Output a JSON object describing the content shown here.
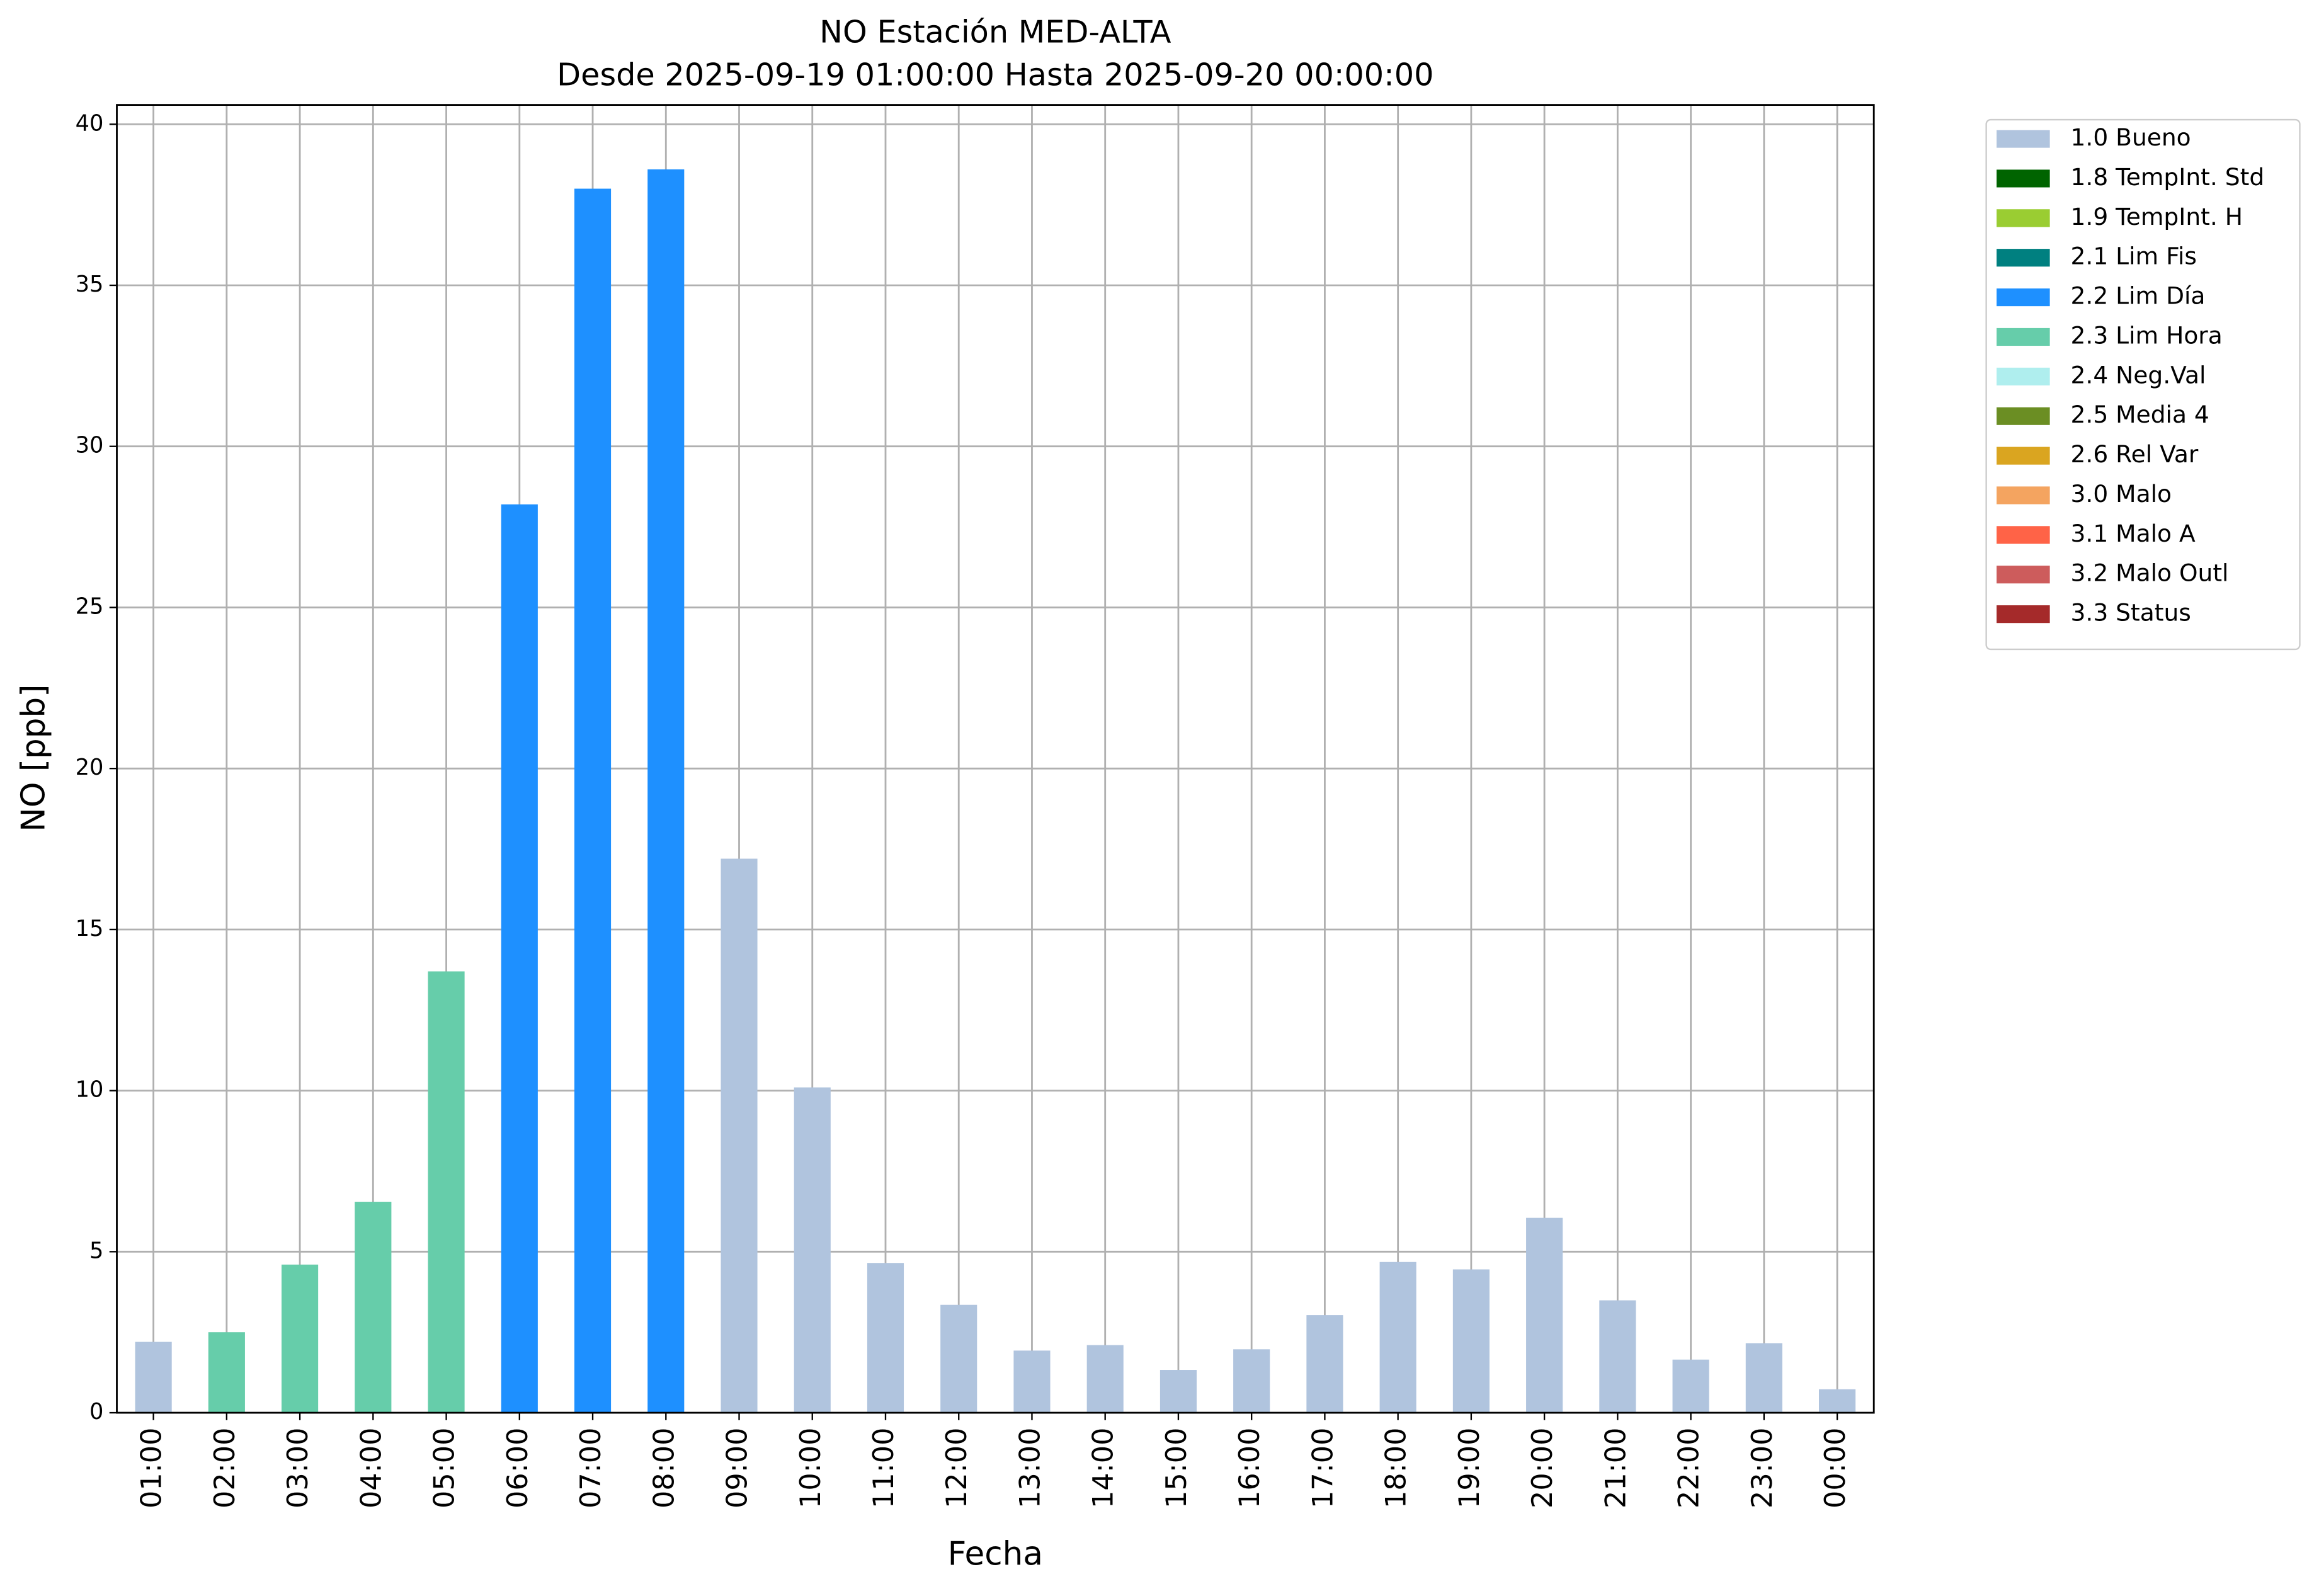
{
  "chart_data": {
    "type": "bar",
    "title": "NO Estación MED-ALTA",
    "subtitle": "Desde 2025-09-19 01:00:00 Hasta 2025-09-20 00:00:00",
    "x_label": "Fecha",
    "y_label": "NO [ppb]",
    "categories": [
      "01:00",
      "02:00",
      "03:00",
      "04:00",
      "05:00",
      "06:00",
      "07:00",
      "08:00",
      "09:00",
      "10:00",
      "11:00",
      "12:00",
      "13:00",
      "14:00",
      "15:00",
      "16:00",
      "17:00",
      "18:00",
      "19:00",
      "20:00",
      "21:00",
      "22:00",
      "23:00",
      "00:00"
    ],
    "series": [
      {
        "name": "1.0 Bueno",
        "color": "#b0c4de",
        "values": [
          2.2,
          null,
          null,
          null,
          null,
          null,
          null,
          null,
          17.2,
          10.1,
          4.65,
          3.35,
          1.93,
          2.1,
          1.33,
          1.97,
          3.03,
          4.68,
          4.45,
          6.05,
          3.49,
          1.65,
          2.16,
          0.73
        ]
      },
      {
        "name": "1.8 TempInt. Std",
        "color": "#006400",
        "values": [
          null,
          null,
          null,
          null,
          null,
          null,
          null,
          null,
          null,
          null,
          null,
          null,
          null,
          null,
          null,
          null,
          null,
          null,
          null,
          null,
          null,
          null,
          null,
          null
        ]
      },
      {
        "name": "1.9 TempInt. H",
        "color": "#9acd32",
        "values": [
          null,
          null,
          null,
          null,
          null,
          null,
          null,
          null,
          null,
          null,
          null,
          null,
          null,
          null,
          null,
          null,
          null,
          null,
          null,
          null,
          null,
          null,
          null,
          null
        ]
      },
      {
        "name": "2.1 Lim Fis",
        "color": "#008080",
        "values": [
          null,
          null,
          null,
          null,
          null,
          null,
          null,
          null,
          null,
          null,
          null,
          null,
          null,
          null,
          null,
          null,
          null,
          null,
          null,
          null,
          null,
          null,
          null,
          null
        ]
      },
      {
        "name": "2.2 Lim Día",
        "color": "#1e90ff",
        "values": [
          null,
          null,
          null,
          null,
          null,
          28.2,
          38.0,
          38.6,
          null,
          null,
          null,
          null,
          null,
          null,
          null,
          null,
          null,
          null,
          null,
          null,
          null,
          null,
          null,
          null
        ]
      },
      {
        "name": "2.3 Lim Hora",
        "color": "#66cdaa",
        "values": [
          null,
          2.5,
          4.6,
          6.55,
          13.7,
          null,
          null,
          null,
          null,
          null,
          null,
          null,
          null,
          null,
          null,
          null,
          null,
          null,
          null,
          null,
          null,
          null,
          null,
          null
        ]
      },
      {
        "name": "2.4 Neg.Val",
        "color": "#afeeee",
        "values": [
          null,
          null,
          null,
          null,
          null,
          null,
          null,
          null,
          null,
          null,
          null,
          null,
          null,
          null,
          null,
          null,
          null,
          null,
          null,
          null,
          null,
          null,
          null,
          null
        ]
      },
      {
        "name": "2.5 Media 4",
        "color": "#6b8e23",
        "values": [
          null,
          null,
          null,
          null,
          null,
          null,
          null,
          null,
          null,
          null,
          null,
          null,
          null,
          null,
          null,
          null,
          null,
          null,
          null,
          null,
          null,
          null,
          null,
          null
        ]
      },
      {
        "name": "2.6 Rel Var",
        "color": "#daa520",
        "values": [
          null,
          null,
          null,
          null,
          null,
          null,
          null,
          null,
          null,
          null,
          null,
          null,
          null,
          null,
          null,
          null,
          null,
          null,
          null,
          null,
          null,
          null,
          null,
          null
        ]
      },
      {
        "name": "3.0 Malo",
        "color": "#f4a460",
        "values": [
          null,
          null,
          null,
          null,
          null,
          null,
          null,
          null,
          null,
          null,
          null,
          null,
          null,
          null,
          null,
          null,
          null,
          null,
          null,
          null,
          null,
          null,
          null,
          null
        ]
      },
      {
        "name": "3.1 Malo A",
        "color": "#ff6347",
        "values": [
          null,
          null,
          null,
          null,
          null,
          null,
          null,
          null,
          null,
          null,
          null,
          null,
          null,
          null,
          null,
          null,
          null,
          null,
          null,
          null,
          null,
          null,
          null,
          null
        ]
      },
      {
        "name": "3.2 Malo Outl",
        "color": "#cd5c5c",
        "values": [
          null,
          null,
          null,
          null,
          null,
          null,
          null,
          null,
          null,
          null,
          null,
          null,
          null,
          null,
          null,
          null,
          null,
          null,
          null,
          null,
          null,
          null,
          null,
          null
        ]
      },
      {
        "name": "3.3 Status",
        "color": "#a52a2a",
        "values": [
          null,
          null,
          null,
          null,
          null,
          null,
          null,
          null,
          null,
          null,
          null,
          null,
          null,
          null,
          null,
          null,
          null,
          null,
          null,
          null,
          null,
          null,
          null,
          null
        ]
      }
    ],
    "ylim": [
      0,
      40.6
    ],
    "yticks": [
      0,
      5,
      10,
      15,
      20,
      25,
      30,
      35,
      40
    ],
    "grid": true,
    "legend": "outside-right"
  }
}
